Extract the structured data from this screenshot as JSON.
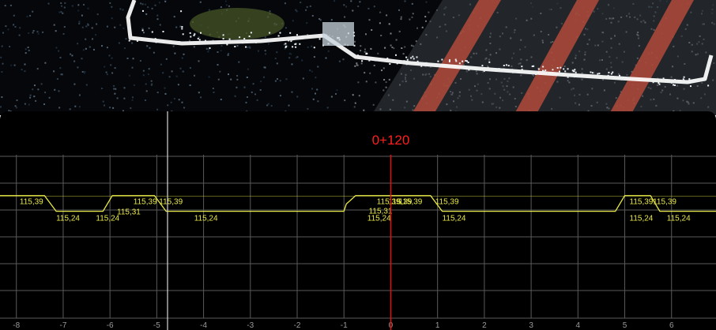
{
  "point_cloud_view": {
    "background": "#05070a",
    "curb_color": "#ffffff",
    "stripe_color": "#b04a3a"
  },
  "section_view": {
    "station": "0+120",
    "station_color": "#ff1e1e",
    "grid_color": "#5a5a5a",
    "profile_color": "#e8e84a",
    "cursor_color": "#d8d8d8",
    "station_line_color": "#e01010"
  },
  "chart_data": {
    "type": "line",
    "title": "0+120",
    "xlabel": "",
    "ylabel": "",
    "x_ticks": [
      "-8",
      "-7",
      "-6",
      "-5",
      "-4",
      "-3",
      "-2",
      "-1",
      "0",
      "1",
      "2",
      "3",
      "4",
      "5",
      "6"
    ],
    "xlim": [
      -8.35,
      6.95
    ],
    "ylim": [
      114.1,
      116.2
    ],
    "grid": true,
    "series": [
      {
        "x": [
          -8.35,
          -7.4,
          -7.15,
          -6.15,
          -5.95,
          -5.55,
          -5.05,
          -4.8,
          -1.0,
          -0.95,
          -0.75,
          -0.35,
          0.15,
          0.25,
          0.85,
          1.1,
          4.8,
          5.0,
          5.55,
          5.75,
          6.95
        ],
        "y": [
          115.39,
          115.39,
          115.24,
          115.24,
          115.39,
          115.39,
          115.39,
          115.24,
          115.24,
          115.31,
          115.39,
          115.39,
          115.39,
          115.39,
          115.39,
          115.24,
          115.24,
          115.39,
          115.39,
          115.24,
          115.24
        ]
      }
    ],
    "annotations": [
      {
        "text": "115,39",
        "x": -7.93,
        "y": 115.31
      },
      {
        "text": "115,24",
        "x": -7.15,
        "y": 115.15
      },
      {
        "text": "115,24",
        "x": -6.3,
        "y": 115.15
      },
      {
        "text": "115,31",
        "x": -5.85,
        "y": 115.21
      },
      {
        "text": "115,39",
        "x": -5.5,
        "y": 115.31
      },
      {
        "text": "115,39",
        "x": -4.95,
        "y": 115.31
      },
      {
        "text": "115,24",
        "x": -4.2,
        "y": 115.15
      },
      {
        "text": "115,24",
        "x": -0.5,
        "y": 115.15
      },
      {
        "text": "115,31",
        "x": -0.47,
        "y": 115.22
      },
      {
        "text": "115,39",
        "x": -0.3,
        "y": 115.31
      },
      {
        "text": "115,39",
        "x": -0.05,
        "y": 115.31
      },
      {
        "text": "115,39",
        "x": 0.17,
        "y": 115.31
      },
      {
        "text": "115,39",
        "x": 0.95,
        "y": 115.31
      },
      {
        "text": "115,24",
        "x": 1.1,
        "y": 115.15
      },
      {
        "text": "115,39",
        "x": 5.1,
        "y": 115.31
      },
      {
        "text": "115,24",
        "x": 5.1,
        "y": 115.15
      },
      {
        "text": "115,39",
        "x": 5.6,
        "y": 115.31
      },
      {
        "text": "115,24",
        "x": 5.9,
        "y": 115.15
      }
    ]
  }
}
